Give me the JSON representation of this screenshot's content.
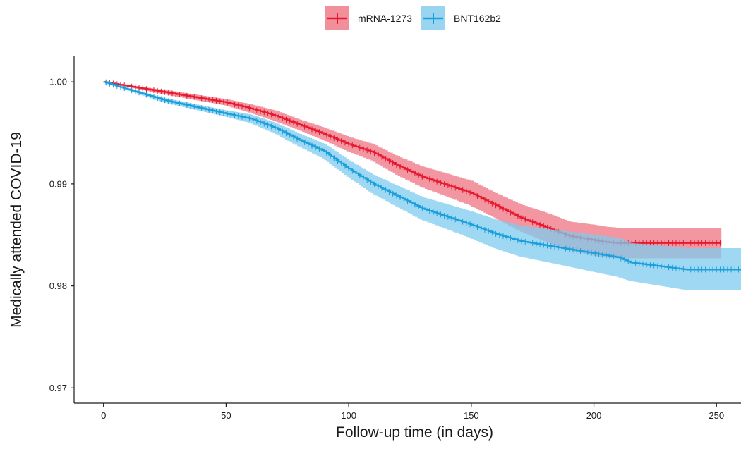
{
  "chart_data": {
    "type": "line",
    "title": "",
    "xlabel": "Follow-up time (in days)",
    "ylabel": "Medically attended COVID-19",
    "xlim": [
      -12,
      260
    ],
    "ylim": [
      0.9685,
      1.0025
    ],
    "x_ticks": [
      0,
      50,
      100,
      150,
      200,
      250
    ],
    "x_tick_labels": [
      "0",
      "50",
      "100",
      "150",
      "200",
      "250"
    ],
    "y_ticks": [
      0.97,
      0.98,
      0.99,
      1.0
    ],
    "y_tick_labels": [
      "0.97",
      "0.98",
      "0.99",
      "1.00"
    ],
    "grid": false,
    "legend_position": "top",
    "series": [
      {
        "name": "mRNA-1273",
        "color": "#e8182f",
        "band_color": "#ee7381",
        "x": [
          0,
          25,
          50,
          60,
          70,
          80,
          90,
          100,
          110,
          120,
          130,
          140,
          150,
          160,
          170,
          180,
          190,
          200,
          205,
          210,
          252
        ],
        "y": [
          1.0,
          0.999,
          0.998,
          0.9974,
          0.9967,
          0.9958,
          0.9949,
          0.9939,
          0.9931,
          0.9918,
          0.9907,
          0.9899,
          0.9891,
          0.9879,
          0.9867,
          0.9858,
          0.9849,
          0.9845,
          0.9843,
          0.9842,
          0.9842
        ],
        "lower": [
          1.0,
          0.9988,
          0.9977,
          0.997,
          0.9962,
          0.9953,
          0.9943,
          0.9932,
          0.9923,
          0.9909,
          0.9897,
          0.9888,
          0.9879,
          0.9867,
          0.9854,
          0.9844,
          0.9835,
          0.983,
          0.9828,
          0.9827,
          0.9827
        ],
        "upper": [
          1.0,
          0.9992,
          0.9983,
          0.9978,
          0.9972,
          0.9963,
          0.9955,
          0.9946,
          0.9939,
          0.9927,
          0.9917,
          0.991,
          0.9903,
          0.9891,
          0.988,
          0.9872,
          0.9863,
          0.986,
          0.9858,
          0.9857,
          0.9857
        ]
      },
      {
        "name": "BNT162b2",
        "color": "#1a9fdb",
        "band_color": "#7fcbee",
        "x": [
          0,
          25,
          50,
          60,
          70,
          80,
          90,
          100,
          110,
          120,
          130,
          140,
          150,
          160,
          170,
          180,
          190,
          200,
          210,
          215,
          238,
          260
        ],
        "y": [
          1.0,
          0.9982,
          0.9969,
          0.9964,
          0.9955,
          0.9943,
          0.9932,
          0.9915,
          0.99,
          0.9888,
          0.9876,
          0.9868,
          0.986,
          0.9851,
          0.9844,
          0.984,
          0.9836,
          0.9832,
          0.9828,
          0.9823,
          0.9816,
          0.9816
        ],
        "lower": [
          1.0,
          0.998,
          0.9966,
          0.996,
          0.995,
          0.9937,
          0.9925,
          0.9907,
          0.9891,
          0.9878,
          0.9865,
          0.9856,
          0.9847,
          0.9837,
          0.9829,
          0.9824,
          0.9819,
          0.9814,
          0.9809,
          0.9805,
          0.9796,
          0.9796
        ],
        "upper": [
          1.0,
          0.9984,
          0.9972,
          0.9968,
          0.996,
          0.9949,
          0.9939,
          0.9923,
          0.9909,
          0.9898,
          0.9887,
          0.988,
          0.9873,
          0.9865,
          0.9859,
          0.9856,
          0.9853,
          0.985,
          0.9847,
          0.9842,
          0.9837,
          0.9837
        ]
      }
    ]
  }
}
